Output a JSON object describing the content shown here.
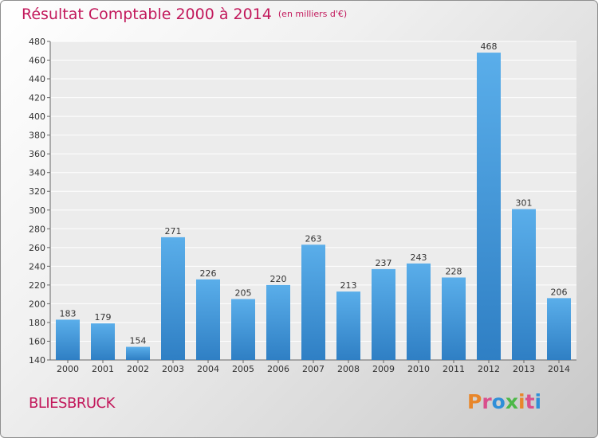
{
  "chart_data": {
    "type": "bar",
    "title": "Résultat Comptable 2000 à 2014",
    "unit_note": "(en milliers d'€)",
    "categories": [
      "2000",
      "2001",
      "2002",
      "2003",
      "2004",
      "2005",
      "2006",
      "2007",
      "2008",
      "2009",
      "2010",
      "2011",
      "2012",
      "2013",
      "2014"
    ],
    "values": [
      183,
      179,
      154,
      271,
      226,
      205,
      220,
      263,
      213,
      237,
      243,
      228,
      468,
      301,
      206
    ],
    "ylim": [
      140,
      480
    ],
    "yticks": [
      140,
      160,
      180,
      200,
      220,
      240,
      260,
      280,
      300,
      320,
      340,
      360,
      380,
      400,
      420,
      440,
      460,
      480
    ],
    "xlabel": "",
    "ylabel": "",
    "grid": true,
    "bar_color": "#4a9fe0"
  },
  "footer": {
    "city": "BLIESBRUCK",
    "logo_text": "Proxiti",
    "logo_colors": [
      "#e8862a",
      "#d94f8c",
      "#2f8fd8",
      "#4db848",
      "#e8862a",
      "#d94f8c",
      "#2f8fd8"
    ]
  }
}
